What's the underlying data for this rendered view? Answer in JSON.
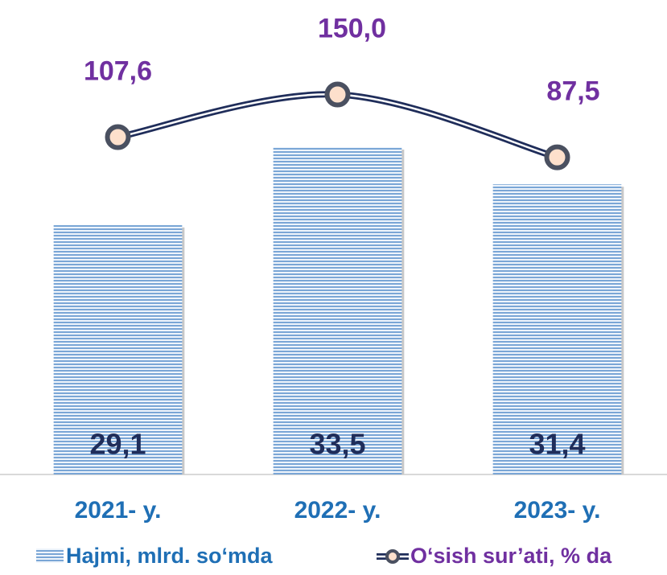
{
  "chart_data": {
    "type": "bar",
    "categories": [
      "2021- y.",
      "2022- y.",
      "2023- y."
    ],
    "series": [
      {
        "name": "Hajmi, mlrd. so‘mda",
        "type": "bar",
        "color": "#5b8fc7",
        "values": [
          29.1,
          33.5,
          31.4
        ],
        "value_labels": [
          "29,1",
          "33,5",
          "31,4"
        ]
      },
      {
        "name": "O‘sish sur’ati, % da",
        "type": "line",
        "axis": "y2",
        "color": "#1f2d5a",
        "values": [
          107.6,
          150.0,
          87.5
        ],
        "value_labels": [
          "107,6",
          "150,0",
          "87,5"
        ]
      }
    ],
    "ylim": [
      15,
      40
    ],
    "y2lim": [
      -228,
      212
    ],
    "legend": "bottom"
  }
}
